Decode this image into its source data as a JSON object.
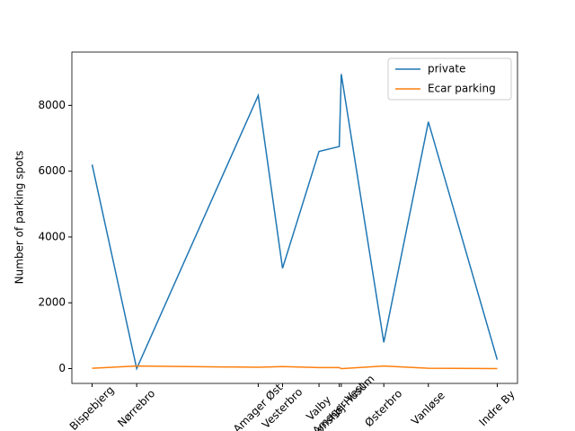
{
  "chart_data": {
    "type": "line",
    "ylabel": "Number of parking spots",
    "x": [
      0,
      11,
      41,
      47,
      56,
      61,
      61.5,
      72,
      83,
      100
    ],
    "xlim": [
      -5,
      105
    ],
    "xticks": [
      {
        "value": 0,
        "label": "Bispebjerg"
      },
      {
        "value": 11,
        "label": "Nørrebro"
      },
      {
        "value": 41,
        "label": "Amager Øst"
      },
      {
        "value": 47,
        "label": "Vesterbro"
      },
      {
        "value": 56,
        "label": "Valby"
      },
      {
        "value": 61,
        "label": "Amager Vest"
      },
      {
        "value": 61.5,
        "label": "Brønshøj-Husum"
      },
      {
        "value": 72,
        "label": "Østerbro"
      },
      {
        "value": 83,
        "label": "Vanløse"
      },
      {
        "value": 100,
        "label": "Indre By"
      }
    ],
    "ylim": [
      -450,
      9620
    ],
    "yticks": [
      0,
      2000,
      4000,
      6000,
      8000
    ],
    "legend": "upper right",
    "series": [
      {
        "name": "private",
        "color": "#1f77b4",
        "values": [
          6200,
          0,
          8300,
          3050,
          6600,
          6750,
          8950,
          800,
          7500,
          270
        ]
      },
      {
        "name": "Ecar parking",
        "color": "#ff7f0e",
        "values": [
          10,
          80,
          40,
          60,
          30,
          30,
          0,
          80,
          10,
          0
        ]
      }
    ]
  }
}
